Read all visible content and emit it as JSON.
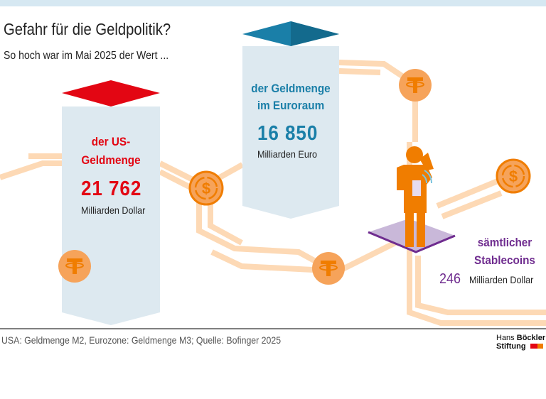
{
  "header": {
    "title": "Gefahr für die Geldpolitik?",
    "subtitle": "So hoch war im Mai 2025 der Wert ..."
  },
  "items": [
    {
      "label_line1": "der US-",
      "label_line2": "Geldmenge",
      "value": "21 762",
      "unit": "Milliarden Dollar",
      "color": "#e30613"
    },
    {
      "label_line1": "der Geldmenge",
      "label_line2": "im Euroraum",
      "value": "16 850",
      "unit": "Milliarden Euro",
      "color": "#1a7fa8"
    },
    {
      "label_line1": "sämtlicher",
      "label_line2": "Stablecoins",
      "value": "246",
      "unit": "Milliarden Dollar",
      "color": "#6f2c8f"
    }
  ],
  "footer": {
    "source": "USA: Geldmenge M2, Eurozone: Geldmenge M3; Quelle: Bofinger 2025",
    "logo_line1_a": "Hans ",
    "logo_line1_b": "Böckler",
    "logo_line2": "Stiftung"
  },
  "icons": [
    "tether-coin-icon",
    "dollar-coin-icon",
    "person-phone-icon"
  ]
}
